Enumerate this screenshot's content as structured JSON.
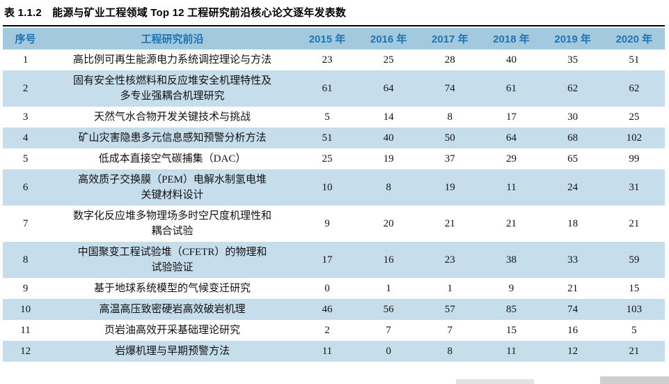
{
  "caption": "表 1.1.2　能源与矿业工程领域 Top 12 工程研究前沿核心论文逐年发表数",
  "table": {
    "columns": [
      "序号",
      "工程研究前沿",
      "2015 年",
      "2016 年",
      "2017 年",
      "2018 年",
      "2019 年",
      "2020 年"
    ],
    "rows": [
      {
        "no": "1",
        "front": "高比例可再生能源电力系统调控理论与方法",
        "values": [
          "23",
          "25",
          "28",
          "40",
          "35",
          "51"
        ]
      },
      {
        "no": "2",
        "front": "固有安全性核燃料和反应堆安全机理特性及\n多专业强耦合机理研究",
        "values": [
          "61",
          "64",
          "74",
          "61",
          "62",
          "62"
        ]
      },
      {
        "no": "3",
        "front": "天然气水合物开发关键技术与挑战",
        "values": [
          "5",
          "14",
          "8",
          "17",
          "30",
          "25"
        ]
      },
      {
        "no": "4",
        "front": "矿山灾害隐患多元信息感知预警分析方法",
        "values": [
          "51",
          "40",
          "50",
          "64",
          "68",
          "102"
        ]
      },
      {
        "no": "5",
        "front": "低成本直接空气碳捕集（DAC）",
        "values": [
          "25",
          "19",
          "37",
          "29",
          "65",
          "99"
        ]
      },
      {
        "no": "6",
        "front": "高效质子交换膜（PEM）电解水制氢电堆\n关键材料设计",
        "values": [
          "10",
          "8",
          "19",
          "11",
          "24",
          "31"
        ]
      },
      {
        "no": "7",
        "front": "数字化反应堆多物理场多时空尺度机理性和\n耦合试验",
        "values": [
          "9",
          "20",
          "21",
          "21",
          "18",
          "21"
        ]
      },
      {
        "no": "8",
        "front": "中国聚变工程试验堆（CFETR）的物理和\n试验验证",
        "values": [
          "17",
          "16",
          "23",
          "38",
          "33",
          "59"
        ]
      },
      {
        "no": "9",
        "front": "基于地球系统模型的气候变迁研究",
        "values": [
          "0",
          "1",
          "1",
          "9",
          "21",
          "15"
        ]
      },
      {
        "no": "10",
        "front": "高温高压致密硬岩高效破岩机理",
        "values": [
          "46",
          "56",
          "57",
          "85",
          "74",
          "103"
        ]
      },
      {
        "no": "11",
        "front": "页岩油高效开采基础理论研究",
        "values": [
          "2",
          "7",
          "7",
          "15",
          "16",
          "5"
        ]
      },
      {
        "no": "12",
        "front": "岩爆机理与早期预警方法",
        "values": [
          "11",
          "0",
          "8",
          "11",
          "12",
          "21"
        ]
      }
    ]
  },
  "colors": {
    "header_bg": "#a3c9df",
    "header_text": "#1c74b4",
    "row_alt_bg": "#c6ddec",
    "rule": "#000000",
    "body_text": "#111111"
  }
}
